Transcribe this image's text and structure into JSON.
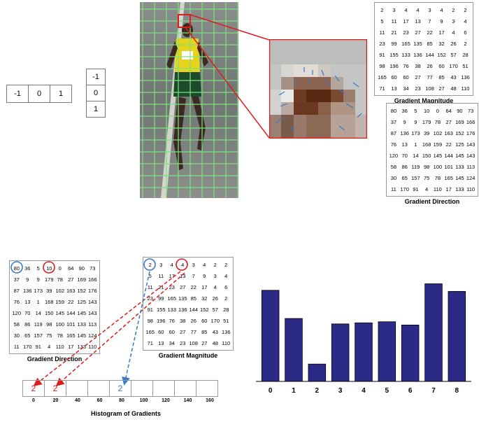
{
  "kernel_h": [
    "-1",
    "0",
    "1"
  ],
  "kernel_v": [
    "-1",
    "0",
    "1"
  ],
  "magnitude": {
    "caption": "Gradient Magnitude",
    "rows": [
      [
        "2",
        "3",
        "4",
        "4",
        "3",
        "4",
        "2",
        "2"
      ],
      [
        "5",
        "11",
        "17",
        "13",
        "7",
        "9",
        "3",
        "4"
      ],
      [
        "11",
        "21",
        "23",
        "27",
        "22",
        "17",
        "4",
        "6"
      ],
      [
        "23",
        "99",
        "165",
        "135",
        "85",
        "32",
        "26",
        "2"
      ],
      [
        "91",
        "155",
        "133",
        "136",
        "144",
        "152",
        "57",
        "28"
      ],
      [
        "98",
        "196",
        "76",
        "38",
        "26",
        "60",
        "170",
        "51"
      ],
      [
        "165",
        "60",
        "60",
        "27",
        "77",
        "85",
        "43",
        "136"
      ],
      [
        "71",
        "13",
        "34",
        "23",
        "108",
        "27",
        "48",
        "110"
      ]
    ]
  },
  "direction": {
    "caption": "Gradient Direction",
    "rows": [
      [
        "80",
        "36",
        "5",
        "10",
        "0",
        "64",
        "90",
        "73"
      ],
      [
        "37",
        "9",
        "9",
        "179",
        "78",
        "27",
        "169",
        "166"
      ],
      [
        "87",
        "136",
        "173",
        "39",
        "102",
        "163",
        "152",
        "176"
      ],
      [
        "76",
        "13",
        "1",
        "168",
        "159",
        "22",
        "125",
        "143"
      ],
      [
        "120",
        "70",
        "14",
        "150",
        "145",
        "144",
        "145",
        "143"
      ],
      [
        "58",
        "86",
        "119",
        "98",
        "100",
        "101",
        "133",
        "113"
      ],
      [
        "30",
        "65",
        "157",
        "75",
        "78",
        "165",
        "145",
        "124"
      ],
      [
        "11",
        "170",
        "91",
        "4",
        "110",
        "17",
        "133",
        "110"
      ]
    ]
  },
  "histogram": {
    "caption": "Histogram of Gradients",
    "bin_labels": [
      "0",
      "20",
      "40",
      "60",
      "80",
      "100",
      "120",
      "140",
      "160"
    ],
    "cells": [
      "2",
      "2",
      "",
      "",
      "2",
      "",
      "",
      "",
      ""
    ]
  },
  "colors": {
    "bar": "#2b2a86",
    "red": "#e01b1b",
    "blue": "#3a78c9",
    "grid": "#7fe07f"
  },
  "chart_data": {
    "type": "bar",
    "categories": [
      "0",
      "1",
      "2",
      "3",
      "4",
      "5",
      "6",
      "7",
      "8"
    ],
    "values": [
      0.84,
      0.58,
      0.16,
      0.53,
      0.54,
      0.55,
      0.52,
      0.9,
      0.83
    ],
    "ylim": [
      0,
      1
    ]
  }
}
